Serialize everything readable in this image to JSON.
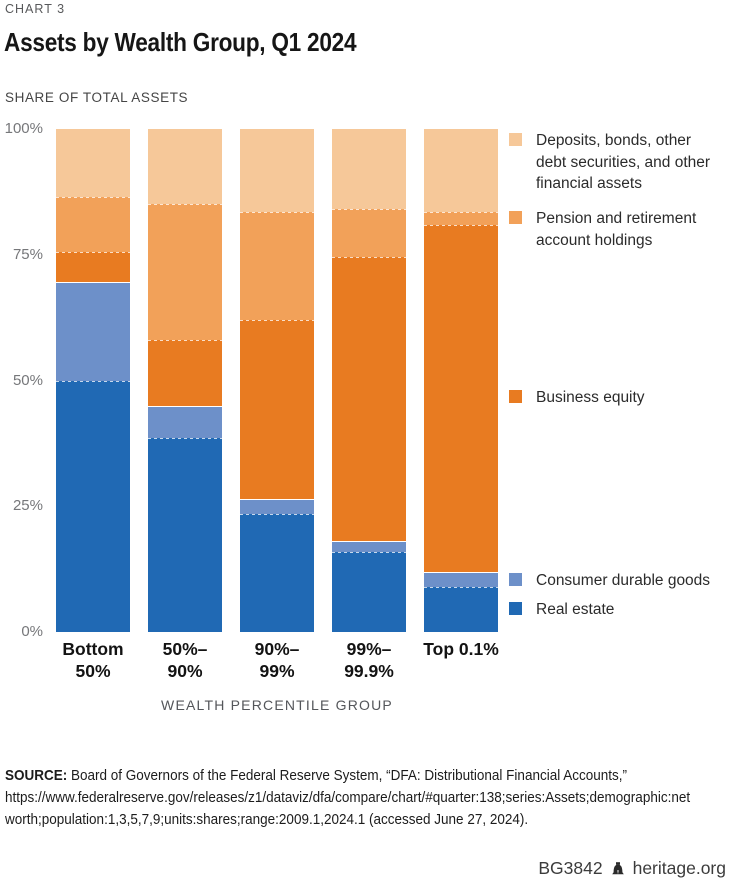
{
  "header": {
    "kicker": "CHART 3",
    "title": "Assets by Wealth Group, Q1 2024",
    "subtitle": "SHARE OF TOTAL ASSETS"
  },
  "chart_data": {
    "type": "bar",
    "stacked": true,
    "units": "percent share of total assets",
    "title": "Assets by Wealth Group, Q1 2024",
    "xlabel": "WEALTH PERCENTILE GROUP",
    "ylabel": "SHARE OF TOTAL ASSETS",
    "ylim": [
      0,
      100
    ],
    "yticks": [
      "100%",
      "75%",
      "50%",
      "25%",
      "0%"
    ],
    "grid": false,
    "legend_position": "right",
    "categories": [
      "Bottom 50%",
      "50%–90%",
      "90%–99%",
      "99%–99.9%",
      "Top 0.1%"
    ],
    "category_label_lines": [
      [
        "Bottom",
        "50%"
      ],
      [
        "50%–",
        "90%"
      ],
      [
        "90%–",
        "99%"
      ],
      [
        "99%–",
        "99.9%"
      ],
      [
        "Top 0.1%"
      ]
    ],
    "series": [
      {
        "name": "Real estate",
        "color": "#2069b4",
        "values": [
          50,
          38.5,
          23.5,
          16,
          9
        ]
      },
      {
        "name": "Consumer durable goods",
        "color": "#6d90c9",
        "values": [
          19.5,
          6.5,
          3,
          2,
          3
        ]
      },
      {
        "name": "Business equity",
        "color": "#e87b21",
        "values": [
          6,
          13,
          35.5,
          56.5,
          69
        ]
      },
      {
        "name": "Pension and retirement account holdings",
        "color": "#f2a159",
        "values": [
          11,
          27,
          21.5,
          9.5,
          2.5
        ]
      },
      {
        "name": "Deposits, bonds, other debt securities, and other financial assets",
        "color": "#f6c899",
        "values": [
          13.5,
          15,
          16.5,
          16,
          16.5
        ]
      }
    ],
    "legend_order_top_to_bottom": [
      "Deposits, bonds, other debt securities, and other financial assets",
      "Pension and retirement account holdings",
      "Business equity",
      "Consumer durable goods",
      "Real estate"
    ]
  },
  "source": {
    "label": "SOURCE:",
    "line1": "Board of Governors of the Federal Reserve System, “DFA: Distributional Financial Accounts,”",
    "line2": "https://www.federalreserve.gov/releases/z1/dataviz/dfa/compare/chart/#quarter:138;series:Assets;demographic:net",
    "line3": "worth;population:1,3,5,7,9;units:shares;range:2009.1,2024.1 (accessed June 27, 2024)."
  },
  "footer": {
    "doc_id": "BG3842",
    "icon": "liberty-bell",
    "site": "heritage.org"
  }
}
